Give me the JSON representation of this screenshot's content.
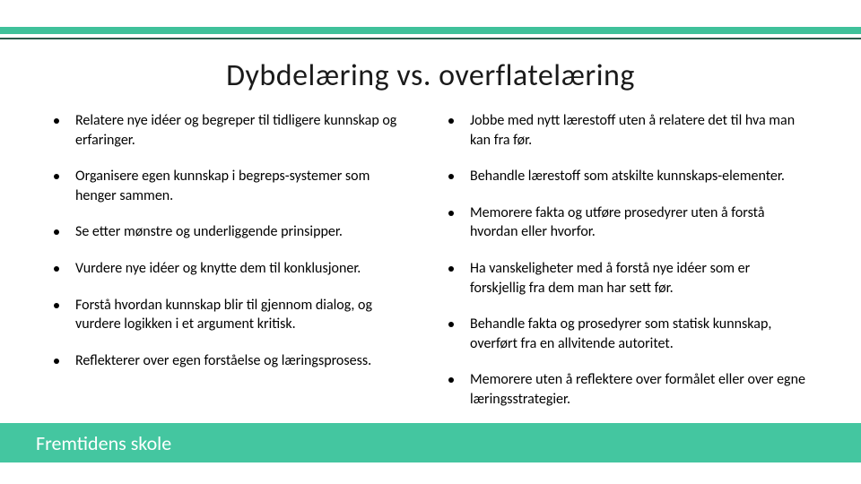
{
  "colors": {
    "accent": "#3fc19a",
    "accent_line": "#2a5a4a",
    "footer": "#44c6a0",
    "text": "#000000",
    "footer_text": "#ffffff",
    "background": "#ffffff"
  },
  "title": "Dybdelæring vs. overflatelæring",
  "left_column": [
    "Relatere nye idéer og begreper til tidligere kunnskap og erfaringer.",
    "Organisere egen kunnskap i begreps-systemer som henger sammen.",
    "Se etter mønstre og underliggende prinsipper.",
    "Vurdere nye idéer og knytte dem til konklusjoner.",
    "Forstå hvordan kunnskap blir til gjennom dialog, og vurdere logikken i et argument kritisk.",
    "Reflekterer over egen forståelse og læringsprosess."
  ],
  "right_column": [
    "Jobbe med nytt lærestoff uten å relatere det til hva man kan fra før.",
    "Behandle lærestoff som atskilte kunnskaps-elementer.",
    "Memorere fakta og utføre prosedyrer uten å forstå hvordan eller hvorfor.",
    "Ha vanskeligheter med å forstå nye idéer som er forskjellig fra dem man har sett før.",
    "Behandle fakta og prosedyrer som statisk kunnskap, overført fra en allvitende autoritet.",
    "Memorere uten å reflektere over formålet eller over egne læringsstrategier."
  ],
  "footer": "Fremtidens skole"
}
